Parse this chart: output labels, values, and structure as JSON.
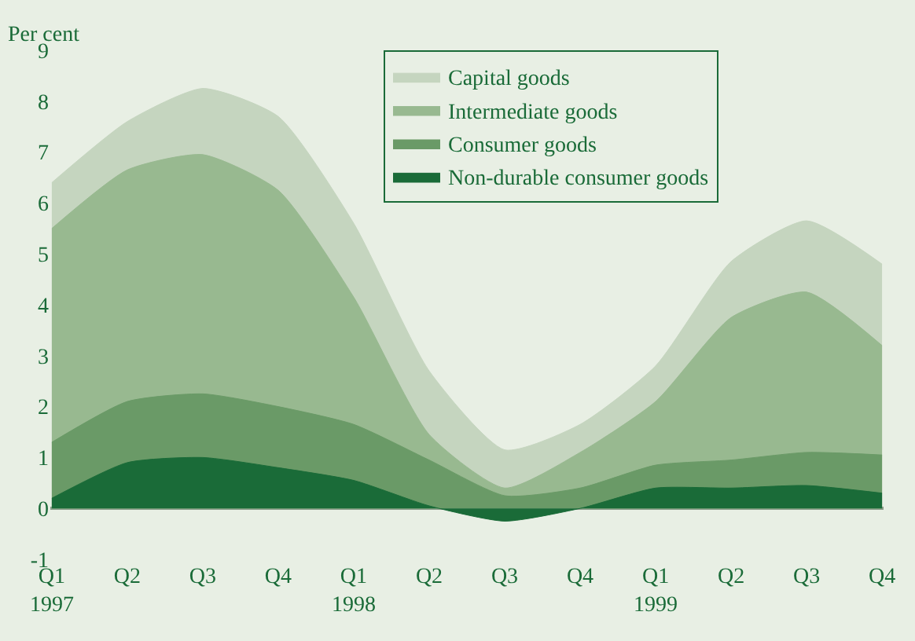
{
  "chart_data": {
    "type": "area",
    "ylabel": "Per cent",
    "categories": [
      "Q1\n1997",
      "Q2",
      "Q3",
      "Q4",
      "Q1\n1998",
      "Q2",
      "Q3",
      "Q4",
      "Q1\n1999",
      "Q2",
      "Q3",
      "Q4"
    ],
    "series": [
      {
        "name": "Capital goods",
        "color": "#c5d5bf",
        "values": [
          6.4,
          7.6,
          8.25,
          7.7,
          5.6,
          2.7,
          1.15,
          1.65,
          2.8,
          4.85,
          5.65,
          4.8
        ]
      },
      {
        "name": "Intermediate goods",
        "color": "#98b990",
        "values": [
          5.5,
          6.65,
          6.95,
          6.25,
          4.15,
          1.45,
          0.4,
          1.1,
          2.1,
          3.75,
          4.25,
          3.2
        ]
      },
      {
        "name": "Consumer goods",
        "color": "#6a9a67",
        "values": [
          1.3,
          2.1,
          2.25,
          2.0,
          1.65,
          0.95,
          0.25,
          0.4,
          0.85,
          0.95,
          1.1,
          1.05
        ]
      },
      {
        "name": "Non-durable consumer goods",
        "color": "#1a6b38",
        "values": [
          0.2,
          0.9,
          1.0,
          0.8,
          0.55,
          0.05,
          -0.25,
          0.0,
          0.4,
          0.4,
          0.45,
          0.3
        ]
      }
    ],
    "ylim": [
      -1,
      9
    ],
    "yticks": [
      -1,
      0,
      1,
      2,
      3,
      4,
      5,
      6,
      7,
      8,
      9
    ],
    "grid": false,
    "legend": "top"
  }
}
